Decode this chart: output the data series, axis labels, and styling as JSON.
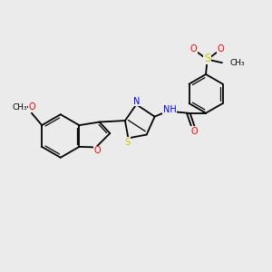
{
  "background_color": "#ebebeb",
  "bond_color": "#000000",
  "atom_colors": {
    "O": "#ff0000",
    "N": "#0000ff",
    "S": "#cccc00",
    "C": "#000000",
    "H": "#555555"
  },
  "figsize": [
    3.0,
    3.0
  ],
  "dpi": 100,
  "xlim": [
    0,
    10
  ],
  "ylim": [
    0,
    10
  ]
}
